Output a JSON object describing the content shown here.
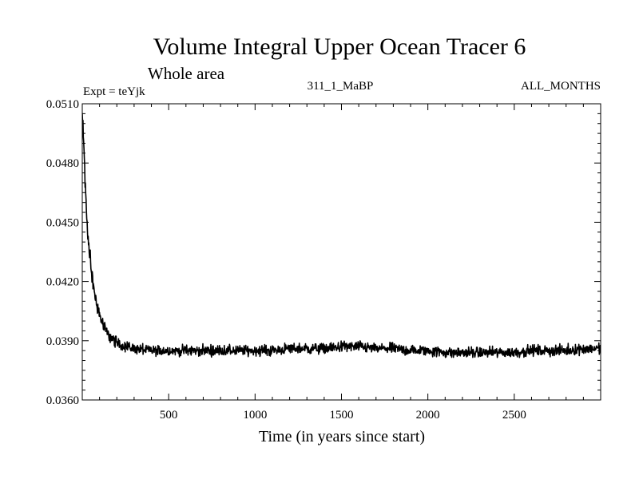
{
  "chart_data": {
    "type": "line",
    "title": "Volume Integral Upper Ocean Tracer 6",
    "subtitle": "Whole area",
    "annotations": {
      "left": "Expt = teYjk",
      "center": "311_1_MaBP",
      "right": "ALL_MONTHS"
    },
    "xlabel": "Time (in years since start)",
    "ylabel": "",
    "xlim": [
      0,
      3000
    ],
    "ylim": [
      0.036,
      0.051
    ],
    "x_ticks": [
      500,
      1000,
      1500,
      2000,
      2500
    ],
    "x_tick_labels": [
      "500",
      "1000",
      "1500",
      "2000",
      "2500"
    ],
    "y_ticks": [
      0.036,
      0.039,
      0.042,
      0.045,
      0.048,
      0.051
    ],
    "y_tick_labels": [
      "0.0360",
      "0.0390",
      "0.0420",
      "0.0450",
      "0.0480",
      "0.0510"
    ],
    "grid": false,
    "series": [
      {
        "name": "Tracer 6",
        "x": [
          0,
          10,
          20,
          30,
          40,
          50,
          60,
          80,
          100,
          120,
          150,
          200,
          250,
          300,
          400,
          500,
          600,
          700,
          800,
          900,
          1000,
          1100,
          1200,
          1300,
          1400,
          1500,
          1600,
          1700,
          1800,
          1900,
          2000,
          2100,
          2200,
          2300,
          2400,
          2500,
          2600,
          2700,
          2800,
          2900,
          3000
        ],
        "values": [
          0.0505,
          0.0485,
          0.0462,
          0.0447,
          0.0436,
          0.0428,
          0.042,
          0.041,
          0.0403,
          0.0398,
          0.0393,
          0.0389,
          0.0387,
          0.0386,
          0.0385,
          0.0385,
          0.0385,
          0.0385,
          0.0385,
          0.0385,
          0.0385,
          0.0385,
          0.0386,
          0.0386,
          0.0386,
          0.0387,
          0.0387,
          0.0386,
          0.0386,
          0.0385,
          0.0385,
          0.0384,
          0.0384,
          0.0384,
          0.0384,
          0.0384,
          0.0385,
          0.0385,
          0.0385,
          0.0386,
          0.0386
        ],
        "noise_amplitude": 0.0004,
        "color": "#000000"
      }
    ]
  }
}
